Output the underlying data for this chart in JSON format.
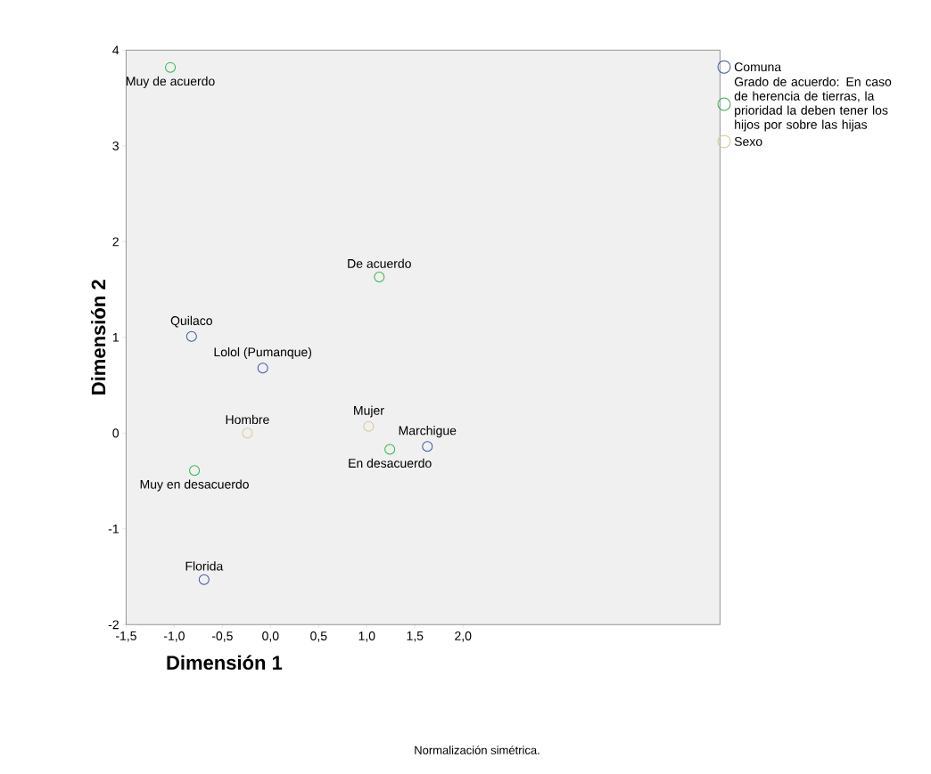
{
  "chart_data": {
    "type": "scatter",
    "xlabel": "Dimensión 1",
    "ylabel": "Dimensión 2",
    "xlim": [
      -1.5,
      4.67
    ],
    "ylim": [
      -2,
      4
    ],
    "xticks": [
      {
        "value": -1.5,
        "label": "-1,5"
      },
      {
        "value": -1.0,
        "label": "-1,0"
      },
      {
        "value": -0.5,
        "label": "-0,5"
      },
      {
        "value": 0,
        "label": "0,0"
      },
      {
        "value": 0.5,
        "label": "0,5"
      },
      {
        "value": 1.0,
        "label": "1,0"
      },
      {
        "value": 1.5,
        "label": "1,5"
      },
      {
        "value": 2.0,
        "label": "2,0"
      }
    ],
    "yticks": [
      -2,
      -1,
      0,
      1,
      2,
      3,
      4
    ],
    "marker": "circle",
    "legend": "top right",
    "grid": false,
    "series": [
      {
        "name": "Comuna",
        "color": "#3a52a8",
        "x": [
          -0.82,
          -0.08,
          1.63,
          -0.69
        ],
        "values": [
          1.01,
          0.68,
          -0.14,
          -1.53
        ],
        "value_labels": [
          "Quilaco",
          "Lolol (Pumanque)",
          "Marchigue",
          "Florida"
        ]
      },
      {
        "name": "Grado de acuerdo: En caso de herencia de tierras, la prioridad la deben tener los hijos por sobre las hijas",
        "color": "#2db34a",
        "x": [
          -1.04,
          1.13,
          1.24,
          -0.79
        ],
        "values": [
          3.82,
          1.63,
          -0.17,
          -0.39
        ],
        "value_labels": [
          "Muy de acuerdo",
          "De  acuerdo",
          "En desacuerdo",
          "Muy en desacuerdo"
        ]
      },
      {
        "name": "Sexo",
        "color": "#d4c99a",
        "x": [
          -0.24,
          1.02
        ],
        "values": [
          0.0,
          0.07
        ],
        "value_labels": [
          "Hombre",
          "Mujer"
        ]
      }
    ],
    "annotations": [
      "Normalización simétrica."
    ]
  }
}
